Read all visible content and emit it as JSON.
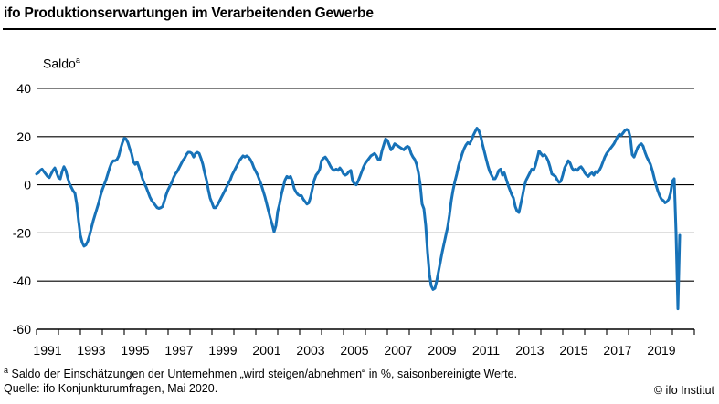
{
  "header": {
    "title": "ifo Produktionserwartungen im Verarbeitenden Gewerbe"
  },
  "footer": {
    "footnote_superscript": "a",
    "footnote_text": " Saldo der Einschätzungen der Unternehmen „wird steigen/abnehmen“ in %, saisonbereinigte Werte.",
    "source": "Quelle: ifo Konjunkturumfragen, Mai 2020.",
    "copyright": "© ifo Institut"
  },
  "chart_data": {
    "type": "line",
    "title": "ifo Produktionserwartungen im Verarbeitenden Gewerbe",
    "y_axis_label": "Saldo",
    "y_axis_label_superscript": "a",
    "unit": "Saldo in %, saisonbereinigt",
    "ylim": [
      -60,
      40
    ],
    "yticks": [
      40,
      20,
      0,
      -20,
      -40,
      -60
    ],
    "x_axis_year_range": [
      1991,
      2021
    ],
    "x_tick_years_labeled": [
      1991,
      1993,
      1995,
      1997,
      1999,
      2001,
      2003,
      2005,
      2007,
      2009,
      2011,
      2013,
      2015,
      2017,
      2019
    ],
    "grid": true,
    "legend": false,
    "line_color": "#1772b8",
    "axis_color": "#000000",
    "series": [
      {
        "name": "Produktionserwartungen (Saldo)",
        "start": "1991-01",
        "end": "2020-05",
        "frequency": "monthly",
        "values": [
          4.5,
          5,
          6,
          6.5,
          5.5,
          4.5,
          3.5,
          3,
          4.5,
          6,
          7,
          5,
          3,
          2.5,
          5.5,
          7.5,
          6,
          3,
          0.5,
          -1,
          -2.5,
          -3.5,
          -8,
          -15,
          -21,
          -24,
          -25.5,
          -25,
          -23.5,
          -21,
          -18,
          -15,
          -12.5,
          -10,
          -7.5,
          -4.5,
          -2,
          0,
          2,
          4.5,
          7,
          9,
          10,
          10,
          10.5,
          12,
          15,
          17.5,
          19.3,
          19,
          17.5,
          15,
          13,
          9.5,
          8.5,
          9.5,
          7.5,
          5,
          2.5,
          0.5,
          -1,
          -3,
          -5,
          -6.5,
          -7.5,
          -8.5,
          -9.5,
          -9.8,
          -9.5,
          -9,
          -6.5,
          -4,
          -2,
          -0.5,
          1,
          3,
          4.5,
          5.5,
          7,
          8.5,
          10,
          11,
          12.5,
          13.5,
          13.5,
          13,
          11.5,
          13,
          13.5,
          13,
          11,
          8.5,
          5,
          2,
          -2,
          -5.5,
          -7.5,
          -9.5,
          -9.5,
          -8.5,
          -7,
          -5.5,
          -4,
          -2.5,
          -1,
          0.5,
          2,
          4,
          5.5,
          7,
          8.5,
          10,
          11,
          12,
          11.5,
          12,
          11.5,
          10.5,
          9,
          7,
          5.5,
          4,
          2,
          0,
          -2.5,
          -5,
          -8,
          -11,
          -14,
          -16.5,
          -19.5,
          -17,
          -11,
          -8,
          -4,
          -1,
          2,
          3.5,
          3,
          3.5,
          1.5,
          -1.5,
          -3,
          -4,
          -4.5,
          -4.5,
          -6,
          -7,
          -8,
          -7.5,
          -5,
          -1.5,
          2,
          4,
          5,
          6.5,
          10,
          11,
          11.5,
          10.5,
          9,
          7.5,
          6.5,
          6,
          6.5,
          6,
          7,
          6,
          4.5,
          4,
          4.5,
          5.5,
          6,
          1.5,
          0.5,
          0,
          1.5,
          3.5,
          5.5,
          7.5,
          9,
          10,
          11,
          12,
          12.5,
          13,
          12,
          10.5,
          10.5,
          14,
          16.5,
          19,
          18.5,
          16.5,
          14.5,
          15.5,
          17,
          16.5,
          16,
          15.5,
          15,
          14.5,
          15.5,
          16,
          15.5,
          13,
          11.5,
          10.5,
          8.5,
          5,
          0,
          -8,
          -10,
          -17,
          -28,
          -37,
          -42,
          -43.5,
          -43,
          -40,
          -36,
          -32,
          -28,
          -24.5,
          -21,
          -17.5,
          -12.5,
          -6.5,
          -2,
          1.5,
          4.5,
          8,
          10.5,
          13,
          15,
          16.5,
          17.5,
          17,
          18.5,
          20.5,
          22,
          23.5,
          22.5,
          20.5,
          17,
          14,
          11,
          8,
          5.5,
          4,
          2.5,
          2.5,
          4,
          6,
          6.5,
          4,
          5,
          2.5,
          0,
          -2,
          -4,
          -5.5,
          -9,
          -11,
          -11.5,
          -8,
          -4.5,
          -0.5,
          2,
          3.5,
          5,
          6.5,
          6,
          8,
          11,
          14,
          13,
          12,
          12.5,
          11.5,
          10,
          7.5,
          4.5,
          4,
          3.5,
          2,
          1,
          1.5,
          4,
          7,
          8.5,
          10,
          9,
          7,
          6,
          6.5,
          6,
          7,
          7.5,
          6.5,
          5,
          4,
          3.5,
          4.5,
          5,
          4,
          5.5,
          5,
          6,
          7.5,
          9.5,
          11.5,
          13,
          14,
          15,
          16,
          17,
          18.5,
          20,
          21,
          20.5,
          21.5,
          22.5,
          23,
          22.5,
          19.5,
          12.5,
          11.5,
          13.5,
          15.5,
          16.5,
          17,
          16,
          13.5,
          11.5,
          10,
          8.5,
          6,
          3,
          0,
          -2.5,
          -4.5,
          -6,
          -6.5,
          -7.5,
          -7,
          -6,
          -3.5,
          1.5,
          2.5,
          -20,
          -51.5,
          -21
        ]
      }
    ]
  }
}
